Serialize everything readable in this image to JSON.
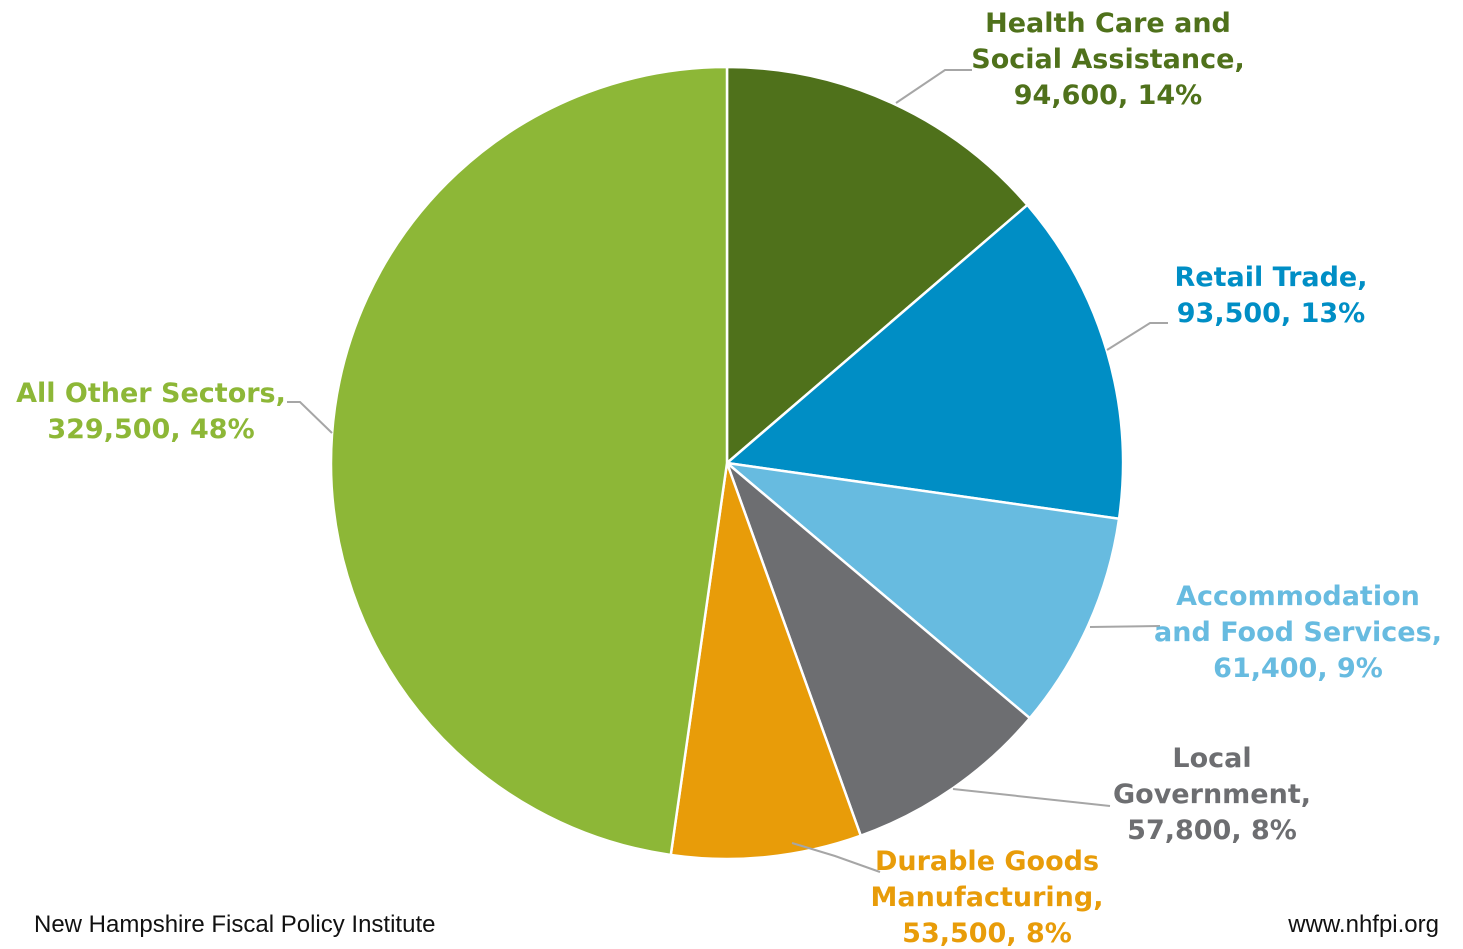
{
  "chart_data": {
    "type": "pie",
    "slices": [
      {
        "name": "Health Care and Social Assistance",
        "label_lines": [
          "Health Care and",
          "Social Assistance,",
          "94,600, 14%"
        ],
        "value": 94600,
        "percent": 14,
        "color": "#4f711b",
        "label_color": "#4f711b",
        "label_anchor": "middle"
      },
      {
        "name": "Retail Trade",
        "label_lines": [
          "Retail Trade,",
          "93,500, 13%"
        ],
        "value": 93500,
        "percent": 13,
        "color": "#008ec5",
        "label_color": "#008ec5",
        "label_anchor": "middle"
      },
      {
        "name": "Accommodation and Food Services",
        "label_lines": [
          "Accommodation",
          "and Food Services,",
          "61,400, 9%"
        ],
        "value": 61400,
        "percent": 9,
        "color": "#67bbe0",
        "label_color": "#67bbe0",
        "label_anchor": "middle"
      },
      {
        "name": "Local Government",
        "label_lines": [
          "Local",
          "Government,",
          "57,800, 8%"
        ],
        "value": 57800,
        "percent": 8,
        "color": "#6d6e71",
        "label_color": "#6d6e71",
        "label_anchor": "middle"
      },
      {
        "name": "Durable Goods Manufacturing",
        "label_lines": [
          "Durable Goods",
          "Manufacturing,",
          "53,500, 8%"
        ],
        "value": 53500,
        "percent": 8,
        "color": "#e89c09",
        "label_color": "#e89c09",
        "label_anchor": "middle"
      },
      {
        "name": "All Other Sectors",
        "label_lines": [
          "All Other Sectors,",
          "329,500, 48%"
        ],
        "value": 329500,
        "percent": 48,
        "color": "#8db737",
        "label_color": "#8db737",
        "label_anchor": "middle"
      }
    ],
    "start_angle_deg": 0,
    "direction": "clockwise",
    "slice_border_color": "#ffffff",
    "leader_line_color": "#a6a6a6"
  },
  "footer": {
    "left": "New Hampshire Fiscal Policy Institute",
    "right": "www.nhfpi.org"
  }
}
